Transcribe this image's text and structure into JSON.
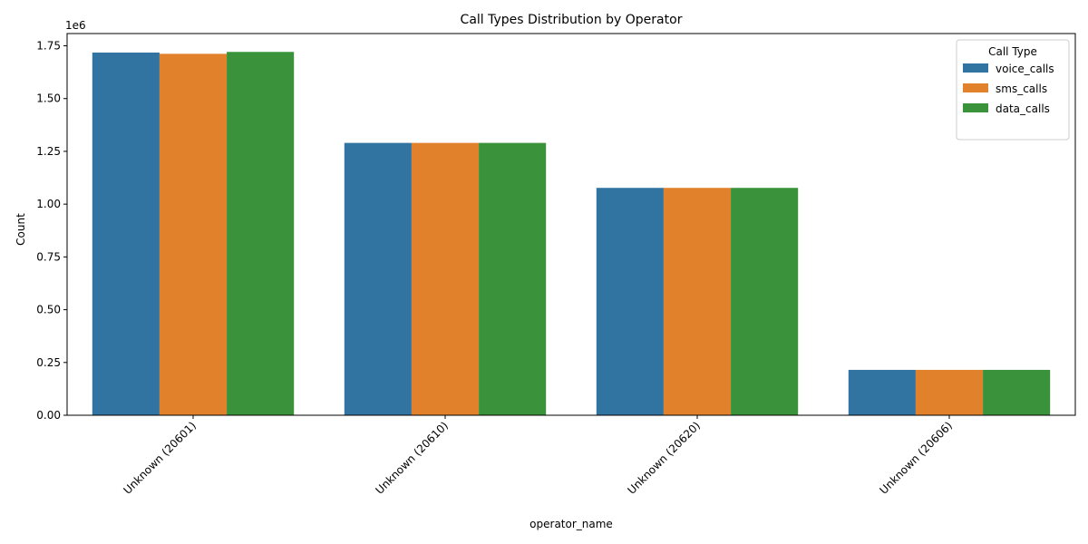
{
  "chart_data": {
    "type": "bar",
    "title": "Call Types Distribution by Operator",
    "xlabel": "operator_name",
    "ylabel": "Count",
    "y_scale_label": "1e6",
    "categories": [
      "Unknown (20601)",
      "Unknown (20610)",
      "Unknown (20620)",
      "Unknown (20606)"
    ],
    "series": [
      {
        "name": "voice_calls",
        "color": "#3274a1",
        "values": [
          1718000,
          1290000,
          1077000,
          215000
        ]
      },
      {
        "name": "sms_calls",
        "color": "#e1812c",
        "values": [
          1712000,
          1290000,
          1077000,
          215000
        ]
      },
      {
        "name": "data_calls",
        "color": "#3a923a",
        "values": [
          1721000,
          1290000,
          1077000,
          215000
        ]
      }
    ],
    "ylim": [
      0,
      1808000
    ],
    "yticks": [
      0,
      250000,
      500000,
      750000,
      1000000,
      1250000,
      1500000,
      1750000
    ],
    "ytick_labels": [
      "0.00",
      "0.25",
      "0.50",
      "0.75",
      "1.00",
      "1.25",
      "1.50",
      "1.75"
    ],
    "xtick_rotation_deg": 45,
    "grid": false,
    "legend": {
      "title": "Call Type",
      "placement": "top-right"
    }
  }
}
